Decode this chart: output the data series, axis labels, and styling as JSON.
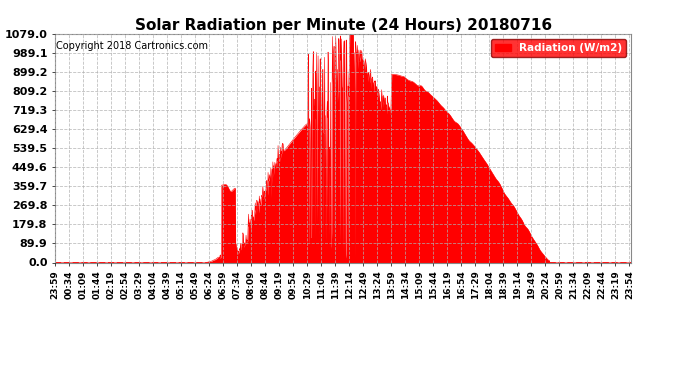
{
  "title": "Solar Radiation per Minute (24 Hours) 20180716",
  "copyright_text": "Copyright 2018 Cartronics.com",
  "legend_label": "Radiation (W/m2)",
  "yticks": [
    0.0,
    89.9,
    179.8,
    269.8,
    359.7,
    449.6,
    539.5,
    629.4,
    719.3,
    809.2,
    899.2,
    989.1,
    1079.0
  ],
  "ylim": [
    0.0,
    1079.0
  ],
  "fill_color": "#FF0000",
  "line_color": "#FF0000",
  "bg_color": "#FFFFFF",
  "grid_color": "#B0B0B0",
  "title_fontsize": 11,
  "copyright_fontsize": 7,
  "legend_box_color": "#FF0000",
  "legend_text_color": "#FFFFFF",
  "tick_fontsize": 6.5,
  "ytick_fontsize": 8
}
